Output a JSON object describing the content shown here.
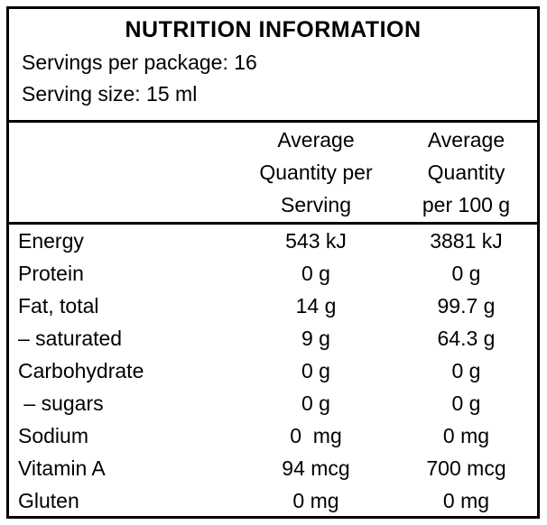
{
  "label": {
    "title": "NUTRITION INFORMATION",
    "servings_per_package": "Servings per package: 16",
    "serving_size": "Serving size: 15 ml"
  },
  "table": {
    "column_headers": {
      "per_serving_lines": [
        "Average",
        "Quantity per",
        "Serving"
      ],
      "per_100g_lines": [
        "Average",
        "Quantity",
        "per 100 g"
      ]
    },
    "rows": [
      {
        "nutrient": "Energy",
        "per_serving": "543 kJ",
        "per_100g": "3881 kJ"
      },
      {
        "nutrient": "Protein",
        "per_serving": "0 g",
        "per_100g": "0 g"
      },
      {
        "nutrient": "Fat, total",
        "per_serving": "14 g",
        "per_100g": "99.7 g"
      },
      {
        "nutrient": "– saturated",
        "per_serving": "9 g",
        "per_100g": "64.3 g"
      },
      {
        "nutrient": "Carbohydrate",
        "per_serving": "0 g",
        "per_100g": "0 g"
      },
      {
        "nutrient": " – sugars",
        "per_serving": "0 g",
        "per_100g": "0 g"
      },
      {
        "nutrient": "Sodium",
        "per_serving": "0  mg",
        "per_100g": "0 mg"
      },
      {
        "nutrient": "Vitamin A",
        "per_serving": "94 mcg",
        "per_100g": "700 mcg"
      },
      {
        "nutrient": "Gluten",
        "per_serving": "0 mg",
        "per_100g": "0 mg"
      }
    ],
    "colors": {
      "text": "#000000",
      "background": "#ffffff",
      "border": "#000000"
    }
  }
}
